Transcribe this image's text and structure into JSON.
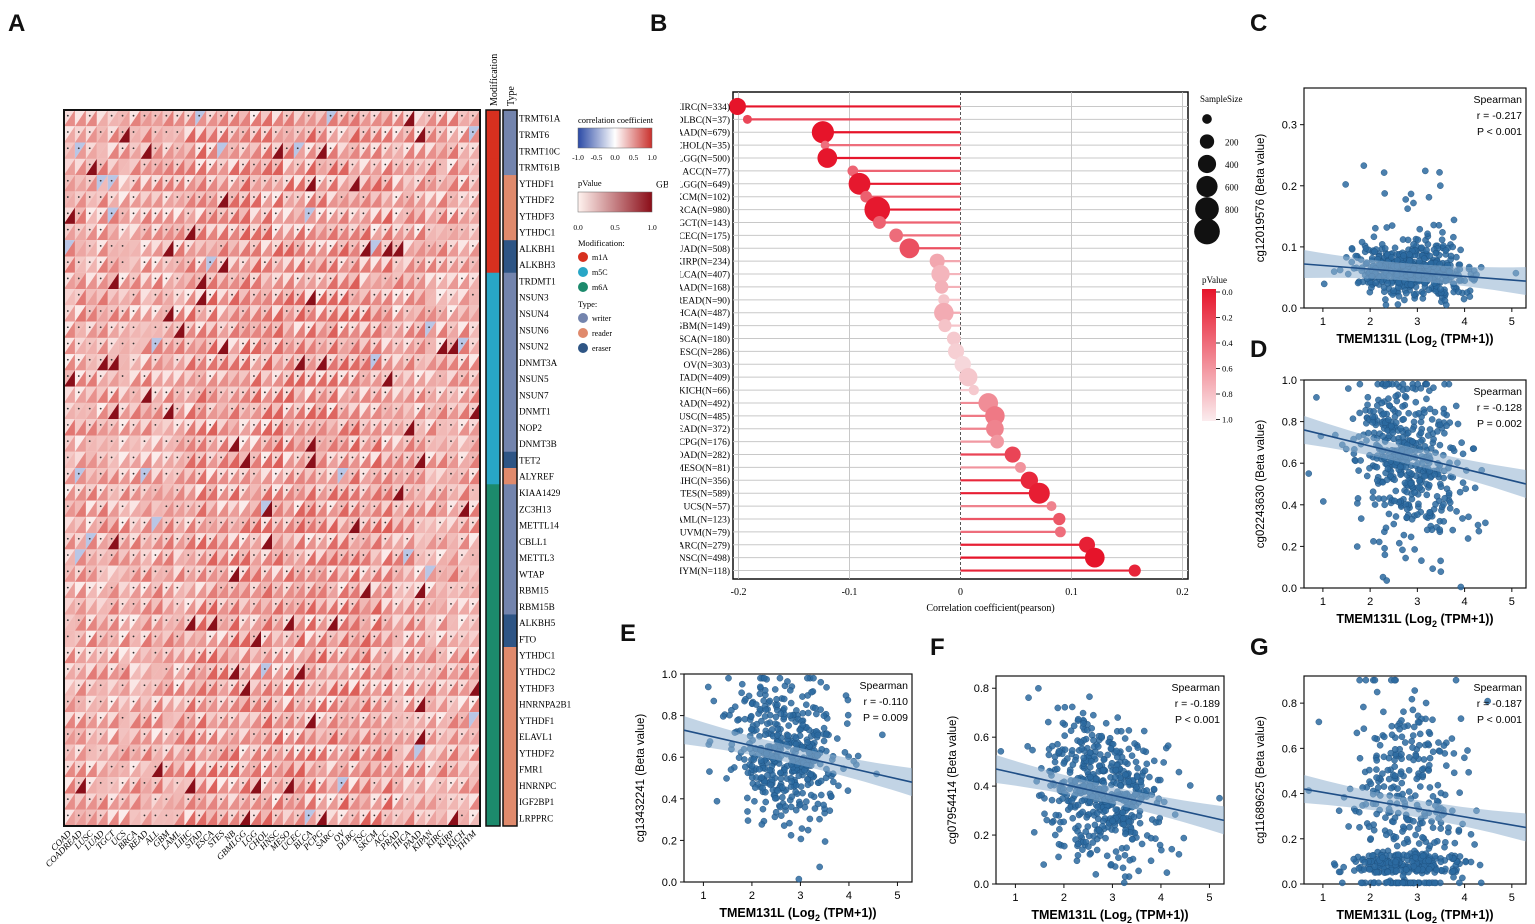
{
  "panel_labels": {
    "A": "A",
    "B": "B",
    "C": "C",
    "D": "D",
    "E": "E",
    "F": "F",
    "G": "G"
  },
  "colors": {
    "red": "#e0202a",
    "darkred": "#b2182b",
    "pink": "#f4b6b8",
    "blue": "#2c6aa0",
    "teal": "#1f9aa8",
    "green": "#1b8a6b",
    "m1a": "#d7301f",
    "m5c": "#28a6c6",
    "m6a": "#1c8a6c",
    "writer": "#7384ad",
    "reader": "#e08a6c",
    "eraser": "#2e5585"
  },
  "chart_data": [
    {
      "type": "heatmap",
      "panel": "A",
      "title": "",
      "columns": [
        "COAD",
        "COADREAD",
        "LUSC",
        "LUAD",
        "TGCT",
        "UCS",
        "BRCA",
        "READ",
        "ALL",
        "GBM",
        "LAML",
        "LIHC",
        "STAD",
        "ESCA",
        "STES",
        "NB",
        "GBMLGG",
        "LGG",
        "CHOL",
        "HNSC",
        "MESO",
        "UCEC",
        "BLCA",
        "PCPG",
        "SARC",
        "OV",
        "DLBC",
        "TSC",
        "SKCM",
        "ACC",
        "PRAD",
        "THCA",
        "PAAD",
        "KIPAN",
        "KIRC",
        "KIRP",
        "KICH",
        "THYM"
      ],
      "rows": [
        "TRMT61A",
        "TRMT6",
        "TRMT10C",
        "TRMT61B",
        "YTHDF1",
        "YTHDF2",
        "YTHDF3",
        "YTHDC1",
        "ALKBH1",
        "ALKBH3",
        "TRDMT1",
        "NSUN3",
        "NSUN4",
        "NSUN6",
        "NSUN2",
        "DNMT3A",
        "NSUN5",
        "NSUN7",
        "DNMT1",
        "NOP2",
        "DNMT3B",
        "TET2",
        "ALYREF",
        "KIAA1429",
        "ZC3H13",
        "METTL14",
        "CBLL1",
        "METTL3",
        "WTAP",
        "RBM15",
        "RBM15B",
        "ALKBH5",
        "FTO",
        "YTHDC1",
        "YTHDC2",
        "YTHDF3",
        "HNRNPA2B1",
        "YTHDF1",
        "ELAVL1",
        "YTHDF2",
        "FMR1",
        "HNRNPC",
        "IGF2BP1",
        "LRPPRC"
      ],
      "row_modification": [
        "m1A",
        "m1A",
        "m1A",
        "m1A",
        "m1A",
        "m1A",
        "m1A",
        "m1A",
        "m1A",
        "m1A",
        "m5C",
        "m5C",
        "m5C",
        "m5C",
        "m5C",
        "m5C",
        "m5C",
        "m5C",
        "m5C",
        "m5C",
        "m5C",
        "m5C",
        "m5C",
        "m6A",
        "m6A",
        "m6A",
        "m6A",
        "m6A",
        "m6A",
        "m6A",
        "m6A",
        "m6A",
        "m6A",
        "m6A",
        "m6A",
        "m6A",
        "m6A",
        "m6A",
        "m6A",
        "m6A",
        "m6A",
        "m6A",
        "m6A",
        "m6A"
      ],
      "row_type": [
        "writer",
        "writer",
        "writer",
        "writer",
        "reader",
        "reader",
        "reader",
        "reader",
        "eraser",
        "eraser",
        "writer",
        "writer",
        "writer",
        "writer",
        "writer",
        "writer",
        "writer",
        "writer",
        "writer",
        "writer",
        "writer",
        "eraser",
        "reader",
        "writer",
        "writer",
        "writer",
        "writer",
        "writer",
        "writer",
        "writer",
        "writer",
        "eraser",
        "eraser",
        "reader",
        "reader",
        "reader",
        "reader",
        "reader",
        "reader",
        "reader",
        "reader",
        "reader",
        "reader",
        "reader"
      ],
      "header_labels": {
        "modification": "Modification",
        "type": "Type"
      },
      "legend": {
        "correlation_title": "correlation coefficient",
        "correlation_ticks": [
          "-1.0",
          "-0.5",
          "0.0",
          "0.5",
          "1.0"
        ],
        "pvalue_title": "pValue",
        "pvalue_ticks": [
          "0.0",
          "0.5",
          "1.0"
        ],
        "modification_title": "Modification:",
        "modification_items": [
          "m1A",
          "m5C",
          "m6A"
        ],
        "type_title": "Type:",
        "type_items": [
          "writer",
          "reader",
          "eraser"
        ]
      }
    },
    {
      "type": "scatter",
      "subtype": "lollipop",
      "panel": "B",
      "xlabel": "Correlation coefficient(pearson)",
      "xlim": [
        -0.205,
        0.205
      ],
      "xticks": [
        "-0.2",
        "-0.1",
        "0",
        "0.1",
        "0.2"
      ],
      "categories": [
        "KIRC(N=334)",
        "DLBC(N=37)",
        "PAAD(N=679)",
        "CHOL(N=35)",
        "LGG(N=500)",
        "ACC(N=77)",
        "GBMLGG(N=649)",
        "SKCM(N=102)",
        "BRCA(N=980)",
        "TGCT(N=143)",
        "UCEC(N=175)",
        "LUAD(N=508)",
        "KIRP(N=234)",
        "BLCA(N=407)",
        "PAAD(N=168)",
        "READ(N=90)",
        "THCA(N=487)",
        "GBM(N=149)",
        "ESCA(N=180)",
        "CESC(N=286)",
        "OV(N=303)",
        "STAD(N=409)",
        "KICH(N=66)",
        "PRAD(N=492)",
        "LUSC(N=485)",
        "HEAD(N=372)",
        "PCPG(N=176)",
        "COAD(N=282)",
        "MESO(N=81)",
        "LIHC(N=356)",
        "TES(N=589)",
        "UCS(N=57)",
        "LAML(N=123)",
        "UVM(N=79)",
        "SARC(N=279)",
        "HNSC(N=498)",
        "THYM(N=118)"
      ],
      "values": [
        -0.201,
        -0.192,
        -0.124,
        -0.122,
        -0.12,
        -0.097,
        -0.091,
        -0.085,
        -0.075,
        -0.073,
        -0.058,
        -0.046,
        -0.021,
        -0.018,
        -0.017,
        -0.015,
        -0.015,
        -0.014,
        -0.006,
        -0.004,
        0.002,
        0.007,
        0.012,
        0.025,
        0.031,
        0.031,
        0.033,
        0.047,
        0.054,
        0.062,
        0.071,
        0.082,
        0.089,
        0.09,
        0.114,
        0.121,
        0.157
      ],
      "sample_size": [
        334,
        37,
        679,
        35,
        500,
        77,
        649,
        102,
        980,
        143,
        175,
        508,
        234,
        407,
        168,
        90,
        487,
        149,
        180,
        286,
        303,
        409,
        66,
        492,
        485,
        372,
        176,
        282,
        81,
        356,
        589,
        57,
        123,
        79,
        279,
        498,
        118
      ],
      "pvalue": [
        0.0,
        0.25,
        0.0,
        0.45,
        0.01,
        0.4,
        0.02,
        0.38,
        0.02,
        0.39,
        0.44,
        0.3,
        0.73,
        0.8,
        0.78,
        0.88,
        0.75,
        0.87,
        0.9,
        0.93,
        0.97,
        0.89,
        0.9,
        0.6,
        0.5,
        0.55,
        0.66,
        0.24,
        0.63,
        0.1,
        0.05,
        0.55,
        0.33,
        0.45,
        0.06,
        0.0,
        0.08
      ],
      "size_legend": {
        "title": "SampleSize",
        "ticks": [
          "200",
          "400",
          "600",
          "800"
        ]
      },
      "pvalue_legend": {
        "title": "pValue",
        "ticks": [
          "0.0",
          "0.2",
          "0.4",
          "0.6",
          "0.8",
          "1.0"
        ]
      }
    },
    {
      "type": "scatter",
      "panel": "C",
      "xlabel": "TMEM131L (Log",
      "xsub": "2",
      "xsuffix": " (TPM+1))",
      "ylabel": "cg12019576 (Beta value)",
      "xlim": [
        0.6,
        5.3
      ],
      "ylim": [
        0,
        0.36
      ],
      "xticks": [
        "1",
        "2",
        "3",
        "4",
        "5"
      ],
      "yticks": [
        "0.0",
        "0.1",
        "0.2",
        "0.3"
      ],
      "stats": {
        "method": "Spearman",
        "r": "r = -0.217",
        "p": "P < 0.001"
      },
      "trend": {
        "x": [
          0.6,
          5.3
        ],
        "y": [
          0.072,
          0.044
        ]
      },
      "n_points": 520,
      "center": [
        2.9,
        0.062
      ],
      "spread": [
        0.75,
        0.022
      ]
    },
    {
      "type": "scatter",
      "panel": "D",
      "xlabel": "TMEM131L (Log",
      "xsub": "2",
      "xsuffix": " (TPM+1))",
      "ylabel": "cg02243630 (Beta value)",
      "xlim": [
        0.6,
        5.3
      ],
      "ylim": [
        0,
        1.0
      ],
      "xticks": [
        "1",
        "2",
        "3",
        "4",
        "5"
      ],
      "yticks": [
        "0.0",
        "0.2",
        "0.4",
        "0.6",
        "0.8",
        "1.0"
      ],
      "stats": {
        "method": "Spearman",
        "r": "r = -0.128",
        "p": "P = 0.002"
      },
      "trend": {
        "x": [
          0.6,
          5.3
        ],
        "y": [
          0.76,
          0.5
        ]
      },
      "n_points": 460,
      "center": [
        2.8,
        0.62
      ],
      "spread": [
        0.75,
        0.2
      ]
    },
    {
      "type": "scatter",
      "panel": "E",
      "xlabel": "TMEM131L (Log",
      "xsub": "2",
      "xsuffix": " (TPM+1))",
      "ylabel": "cg13432241 (Beta value)",
      "xlim": [
        0.6,
        5.3
      ],
      "ylim": [
        0,
        1.0
      ],
      "xticks": [
        "1",
        "2",
        "3",
        "4",
        "5"
      ],
      "yticks": [
        "0.0",
        "0.2",
        "0.4",
        "0.6",
        "0.8",
        "1.0"
      ],
      "stats": {
        "method": "Spearman",
        "r": "r = -0.110",
        "p": "P = 0.009"
      },
      "trend": {
        "x": [
          0.6,
          5.3
        ],
        "y": [
          0.73,
          0.48
        ]
      },
      "n_points": 460,
      "center": [
        2.7,
        0.62
      ],
      "spread": [
        0.7,
        0.17
      ]
    },
    {
      "type": "scatter",
      "panel": "F",
      "xlabel": "TMEM131L (Log",
      "xsub": "2",
      "xsuffix": " (TPM+1))",
      "ylabel": "cg07954414 (Beta value)",
      "xlim": [
        0.6,
        5.3
      ],
      "ylim": [
        0,
        0.85
      ],
      "xticks": [
        "1",
        "2",
        "3",
        "4",
        "5"
      ],
      "yticks": [
        "0.0",
        "0.2",
        "0.4",
        "0.6",
        "0.8"
      ],
      "stats": {
        "method": "Spearman",
        "r": "r = -0.189",
        "p": "P < 0.001"
      },
      "trend": {
        "x": [
          0.6,
          5.3
        ],
        "y": [
          0.47,
          0.26
        ]
      },
      "n_points": 520,
      "center": [
        2.8,
        0.38
      ],
      "spread": [
        0.75,
        0.14
      ]
    },
    {
      "type": "scatter",
      "panel": "G",
      "xlabel": "TMEM131L (Log",
      "xsub": "2",
      "xsuffix": " (TPM+1))",
      "ylabel": "cg11689625 (Beta value)",
      "xlim": [
        0.6,
        5.3
      ],
      "ylim": [
        0,
        0.92
      ],
      "xticks": [
        "1",
        "2",
        "3",
        "4",
        "5"
      ],
      "yticks": [
        "0.0",
        "0.2",
        "0.4",
        "0.6",
        "0.8"
      ],
      "stats": {
        "method": "Spearman",
        "r": "r = -0.187",
        "p": "P < 0.001"
      },
      "trend": {
        "x": [
          0.6,
          5.3
        ],
        "y": [
          0.42,
          0.25
        ]
      },
      "n_points": 520,
      "center": [
        2.8,
        0.34
      ],
      "spread": [
        0.75,
        0.26
      ]
    }
  ]
}
